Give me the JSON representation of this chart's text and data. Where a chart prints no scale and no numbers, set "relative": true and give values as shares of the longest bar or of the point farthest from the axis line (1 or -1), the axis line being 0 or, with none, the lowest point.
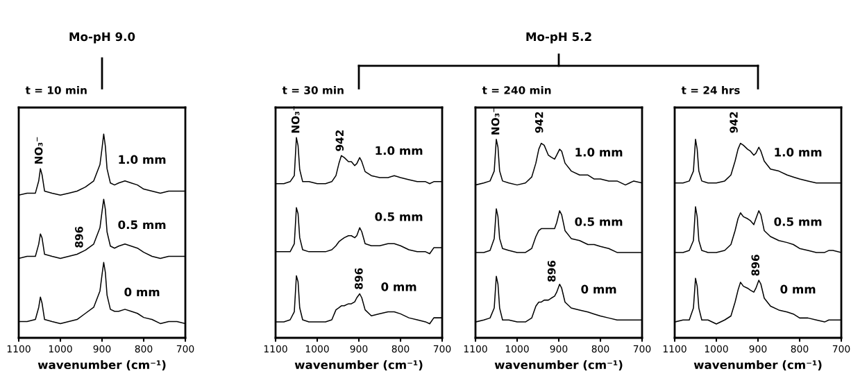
{
  "chart_data": [
    {
      "type": "line",
      "relative": true,
      "title": "t = 10 min",
      "xlabel": "wavenumber (cm⁻¹)",
      "xlim": [
        1100,
        700
      ],
      "xticks": [
        1100,
        1000,
        900,
        800,
        700
      ],
      "tick_labels": "x",
      "x": [
        1100,
        1080,
        1060,
        1052,
        1048,
        1044,
        1038,
        1020,
        1000,
        980,
        960,
        940,
        920,
        905,
        900,
        896,
        892,
        888,
        880,
        870,
        860,
        845,
        830,
        815,
        800,
        780,
        760,
        740,
        720,
        700
      ],
      "series": [
        {
          "name": "1.0 mm",
          "color": "#000000",
          "values": [
            0.7,
            0.71,
            0.71,
            0.77,
            0.83,
            0.8,
            0.72,
            0.71,
            0.7,
            0.71,
            0.72,
            0.74,
            0.77,
            0.85,
            0.93,
            1.0,
            0.94,
            0.83,
            0.76,
            0.75,
            0.76,
            0.77,
            0.76,
            0.75,
            0.73,
            0.72,
            0.71,
            0.72,
            0.72,
            0.72
          ]
        },
        {
          "name": "0.5 mm",
          "color": "#000000",
          "values": [
            0.39,
            0.4,
            0.4,
            0.46,
            0.51,
            0.49,
            0.41,
            0.4,
            0.39,
            0.4,
            0.41,
            0.43,
            0.46,
            0.54,
            0.62,
            0.68,
            0.63,
            0.52,
            0.45,
            0.44,
            0.45,
            0.46,
            0.45,
            0.44,
            0.42,
            0.4,
            0.39,
            0.4,
            0.4,
            0.4
          ]
        },
        {
          "name": "0 mm",
          "color": "#000000",
          "values": [
            0.08,
            0.08,
            0.09,
            0.15,
            0.2,
            0.17,
            0.09,
            0.08,
            0.07,
            0.08,
            0.09,
            0.12,
            0.15,
            0.23,
            0.31,
            0.37,
            0.32,
            0.21,
            0.14,
            0.13,
            0.13,
            0.14,
            0.13,
            0.12,
            0.1,
            0.09,
            0.07,
            0.08,
            0.08,
            0.07
          ]
        }
      ],
      "annotations": [
        "Mo-pH 9.0",
        "NO₃⁻",
        "896"
      ]
    },
    {
      "type": "line",
      "relative": true,
      "title": "t = 30 min",
      "xlabel": "wavenumber (cm⁻¹)",
      "xlim": [
        1100,
        700
      ],
      "xticks": [
        1100,
        1000,
        900,
        800,
        700
      ],
      "tick_labels": "x",
      "x": [
        1100,
        1080,
        1065,
        1055,
        1050,
        1046,
        1042,
        1035,
        1020,
        1000,
        980,
        965,
        955,
        948,
        942,
        935,
        925,
        918,
        910,
        905,
        898,
        893,
        885,
        870,
        850,
        830,
        815,
        800,
        780,
        760,
        740,
        730,
        720,
        700
      ],
      "series": [
        {
          "name": "1.0 mm",
          "color": "#000000",
          "values": [
            0.77,
            0.77,
            0.78,
            0.81,
            1.0,
            0.96,
            0.84,
            0.78,
            0.78,
            0.77,
            0.77,
            0.78,
            0.81,
            0.87,
            0.91,
            0.9,
            0.88,
            0.88,
            0.86,
            0.87,
            0.9,
            0.88,
            0.83,
            0.81,
            0.8,
            0.8,
            0.81,
            0.8,
            0.79,
            0.78,
            0.78,
            0.77,
            0.78,
            0.78
          ]
        },
        {
          "name": "0.5 mm",
          "color": "#000000",
          "values": [
            0.43,
            0.43,
            0.43,
            0.47,
            0.65,
            0.62,
            0.5,
            0.44,
            0.43,
            0.43,
            0.43,
            0.44,
            0.46,
            0.48,
            0.49,
            0.5,
            0.51,
            0.51,
            0.5,
            0.51,
            0.55,
            0.53,
            0.47,
            0.46,
            0.46,
            0.47,
            0.47,
            0.46,
            0.44,
            0.43,
            0.43,
            0.42,
            0.45,
            0.45
          ]
        },
        {
          "name": "0 mm",
          "color": "#000000",
          "values": [
            0.08,
            0.08,
            0.09,
            0.13,
            0.31,
            0.28,
            0.15,
            0.09,
            0.08,
            0.08,
            0.08,
            0.09,
            0.14,
            0.15,
            0.16,
            0.16,
            0.17,
            0.17,
            0.18,
            0.2,
            0.22,
            0.2,
            0.14,
            0.11,
            0.12,
            0.13,
            0.13,
            0.12,
            0.1,
            0.09,
            0.08,
            0.07,
            0.1,
            0.1
          ]
        }
      ],
      "annotations": [
        "NO₃⁻",
        "942",
        "896"
      ]
    },
    {
      "type": "line",
      "relative": true,
      "title": "t = 240 min",
      "xlabel": "wavenumber (cm⁻¹)",
      "xlim": [
        1100,
        700
      ],
      "xticks": [
        1100,
        1000,
        900,
        800,
        700
      ],
      "tick_labels": "x",
      "x": [
        1100,
        1080,
        1065,
        1055,
        1050,
        1046,
        1042,
        1035,
        1020,
        1000,
        980,
        965,
        955,
        948,
        942,
        935,
        925,
        918,
        910,
        905,
        898,
        893,
        885,
        870,
        850,
        830,
        815,
        800,
        780,
        760,
        740,
        730,
        720,
        700
      ],
      "series": [
        {
          "name": "1.0 mm",
          "color": "#000000",
          "values": [
            0.77,
            0.78,
            0.79,
            0.84,
            1.0,
            0.96,
            0.84,
            0.79,
            0.78,
            0.77,
            0.78,
            0.81,
            0.88,
            0.95,
            0.98,
            0.97,
            0.92,
            0.91,
            0.9,
            0.92,
            0.95,
            0.94,
            0.88,
            0.84,
            0.82,
            0.82,
            0.8,
            0.8,
            0.79,
            0.79,
            0.77,
            0.78,
            0.79,
            0.78
          ]
        },
        {
          "name": "0.5 mm",
          "color": "#000000",
          "values": [
            0.43,
            0.43,
            0.44,
            0.5,
            0.65,
            0.61,
            0.5,
            0.45,
            0.44,
            0.43,
            0.43,
            0.45,
            0.51,
            0.54,
            0.55,
            0.55,
            0.55,
            0.55,
            0.55,
            0.58,
            0.64,
            0.62,
            0.54,
            0.5,
            0.49,
            0.47,
            0.47,
            0.46,
            0.45,
            0.43,
            0.43,
            0.43,
            0.43,
            0.43
          ]
        },
        {
          "name": "0 mm",
          "color": "#000000",
          "values": [
            0.08,
            0.09,
            0.1,
            0.15,
            0.31,
            0.27,
            0.15,
            0.09,
            0.09,
            0.08,
            0.08,
            0.1,
            0.16,
            0.18,
            0.18,
            0.19,
            0.19,
            0.2,
            0.21,
            0.23,
            0.27,
            0.25,
            0.18,
            0.15,
            0.14,
            0.13,
            0.12,
            0.11,
            0.1,
            0.09,
            0.09,
            0.09,
            0.09,
            0.09
          ]
        }
      ],
      "annotations": [
        "Mo-pH 5.2",
        "NO₃⁻",
        "942",
        "896"
      ]
    },
    {
      "type": "line",
      "relative": true,
      "title": "t = 24 hrs",
      "xlabel": "wavenumber (cm⁻¹)",
      "xlim": [
        1100,
        700
      ],
      "xticks": [
        1100,
        1000,
        900,
        800,
        700
      ],
      "tick_labels": "x",
      "x": [
        1100,
        1080,
        1065,
        1055,
        1050,
        1046,
        1042,
        1035,
        1020,
        1000,
        980,
        965,
        955,
        948,
        942,
        935,
        925,
        918,
        910,
        905,
        898,
        893,
        885,
        870,
        850,
        830,
        815,
        800,
        780,
        760,
        740,
        730,
        720,
        700
      ],
      "series": [
        {
          "name": "1.0 mm",
          "color": "#000000",
          "values": [
            0.78,
            0.78,
            0.79,
            0.84,
            1.0,
            0.95,
            0.84,
            0.79,
            0.78,
            0.78,
            0.79,
            0.82,
            0.89,
            0.95,
            0.98,
            0.97,
            0.95,
            0.94,
            0.92,
            0.93,
            0.96,
            0.94,
            0.89,
            0.85,
            0.84,
            0.82,
            0.81,
            0.8,
            0.79,
            0.78,
            0.78,
            0.78,
            0.78,
            0.78
          ]
        },
        {
          "name": "0.5 mm",
          "color": "#000000",
          "values": [
            0.43,
            0.43,
            0.44,
            0.49,
            0.66,
            0.61,
            0.49,
            0.44,
            0.43,
            0.43,
            0.44,
            0.47,
            0.54,
            0.6,
            0.63,
            0.61,
            0.6,
            0.59,
            0.57,
            0.6,
            0.64,
            0.62,
            0.54,
            0.51,
            0.49,
            0.48,
            0.47,
            0.45,
            0.44,
            0.43,
            0.43,
            0.44,
            0.44,
            0.43
          ]
        },
        {
          "name": "0 mm",
          "color": "#000000",
          "values": [
            0.08,
            0.09,
            0.09,
            0.15,
            0.3,
            0.26,
            0.15,
            0.09,
            0.09,
            0.07,
            0.09,
            0.11,
            0.18,
            0.24,
            0.28,
            0.26,
            0.25,
            0.24,
            0.23,
            0.25,
            0.29,
            0.27,
            0.2,
            0.16,
            0.14,
            0.13,
            0.12,
            0.1,
            0.1,
            0.09,
            0.08,
            0.09,
            0.09,
            0.09
          ]
        }
      ],
      "annotations": [
        "942",
        "896"
      ]
    }
  ]
}
